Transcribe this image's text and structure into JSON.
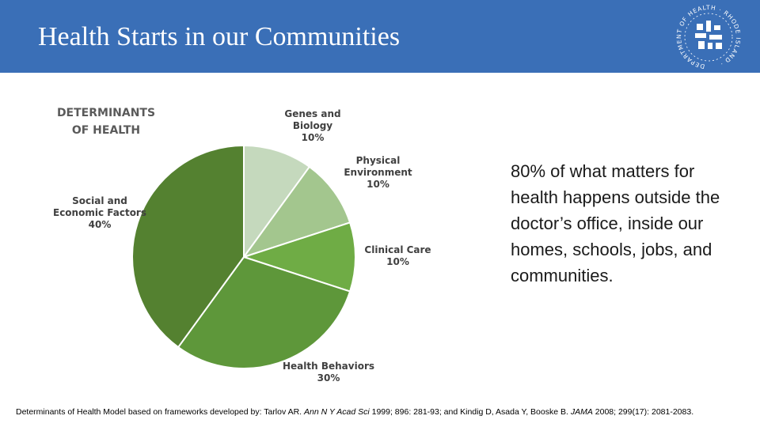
{
  "header": {
    "title": "Health Starts in our Communities",
    "background": "#3a6fb7",
    "logo": {
      "icon": "rhode-island-department-of-health-seal",
      "text": "RHODE ISLAND · DEPARTMENT OF HEALTH"
    }
  },
  "callout": {
    "text": "80% of what matters for health happens outside the doctor’s office, inside our homes, schools, jobs, and communities."
  },
  "footer": {
    "prefix": "Determinants of Health Model based on frameworks developed by: Tarlov AR. ",
    "journal1": "Ann N Y Acad Sci",
    "mid": " 1999; 896: 281-93; and Kindig D, Asada Y, Booske B. ",
    "journal2": "JAMA",
    "suffix": " 2008; 299(17): 2081-2083."
  },
  "chart_data": {
    "type": "pie",
    "title": "DETERMINANTS OF HEALTH",
    "title_lines": [
      "DETERMINANTS",
      "OF HEALTH"
    ],
    "slices": [
      {
        "label": "Genes and Biology",
        "label_lines": [
          "Genes and",
          "Biology"
        ],
        "value": 10,
        "value_label": "10%",
        "color": "#c5d9bd"
      },
      {
        "label": "Physical Environment",
        "label_lines": [
          "Physical",
          "Environment"
        ],
        "value": 10,
        "value_label": "10%",
        "color": "#a3c68e"
      },
      {
        "label": "Clinical Care",
        "label_lines": [
          "Clinical Care"
        ],
        "value": 10,
        "value_label": "10%",
        "color": "#6fac45"
      },
      {
        "label": "Health Behaviors",
        "label_lines": [
          "Health Behaviors"
        ],
        "value": 30,
        "value_label": "30%",
        "color": "#5e973a"
      },
      {
        "label": "Social and Economic Factors",
        "label_lines": [
          "Social and",
          "Economic Factors"
        ],
        "value": 40,
        "value_label": "40%",
        "color": "#548130"
      }
    ]
  }
}
